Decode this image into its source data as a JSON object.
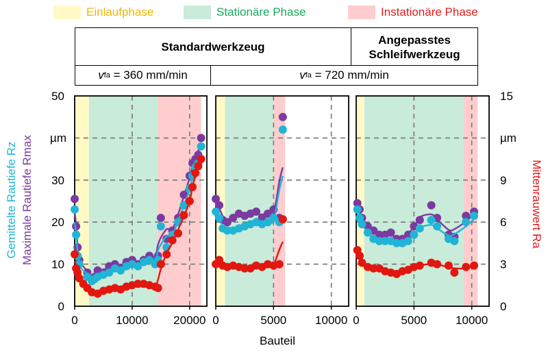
{
  "legend": [
    {
      "label": "Einlaufphase",
      "fill": "#fff9c6",
      "text_color": "#f2b800"
    },
    {
      "label": "Stationäre Phase",
      "fill": "#c9ebd9",
      "text_color": "#1aa85a"
    },
    {
      "label": "Instationäre Phase",
      "fill": "#ffcdcd",
      "text_color": "#e21b1b"
    }
  ],
  "header": {
    "standard_tool": "Standardwerkzeug",
    "adapted_tool_line1": "Angepasstes",
    "adapted_tool_line2": "Schleifwerkzeug"
  },
  "speeds": [
    {
      "symbol": "v",
      "subscript": "fa",
      "value": "= 360 mm/min"
    },
    {
      "symbol": "v",
      "subscript": "fa",
      "value": "= 720 mm/min"
    }
  ],
  "axes": {
    "y_left_label_line1": "Gemittelte Rautiefe Rz",
    "y_left_label_line2": "Maximale Rautiefe Rmax",
    "y_left_unit": "µm",
    "y_left_ticks": [
      "0",
      "10",
      "20",
      "30",
      "40",
      "50"
    ],
    "y_right_label": "Mittenrauwert Ra",
    "y_right_unit": "µm",
    "y_right_ticks": [
      "0",
      "3",
      "6",
      "9",
      "12",
      "15"
    ],
    "x_label": "Bauteil"
  },
  "colors": {
    "rz": "#20b4d6",
    "rmax": "#7a3aa0",
    "ra": "#e2170f",
    "grid": "#777777"
  },
  "chart_data": [
    {
      "type": "scatter",
      "title": "Standardwerkzeug, vfa = 360 mm/min",
      "xlim": [
        0,
        23000
      ],
      "ylim": [
        0,
        50
      ],
      "y2lim": [
        0,
        15
      ],
      "xticks": [
        0,
        10000,
        20000
      ],
      "xtick_labels": [
        "0",
        "10000",
        "20000"
      ],
      "phases": [
        {
          "phase": "Einlaufphase",
          "from": 0,
          "to": 2500
        },
        {
          "phase": "Stationäre Phase",
          "from": 2500,
          "to": 14500
        },
        {
          "phase": "Instationäre Phase",
          "from": 14500,
          "to": 22000
        }
      ],
      "series": [
        {
          "name": "Rmax",
          "axis": "left",
          "x": [
            0,
            250,
            500,
            800,
            2200,
            3000,
            3500,
            4000,
            5000,
            6000,
            7000,
            8000,
            9000,
            10000,
            11000,
            12000,
            13000,
            14000,
            14500,
            15000,
            16000,
            17000,
            18000,
            19000,
            20000,
            20500,
            21000,
            21500,
            22000
          ],
          "y": [
            25.5,
            19,
            14,
            11,
            8,
            6,
            7,
            8.5,
            8,
            9.5,
            10,
            9,
            10.5,
            11,
            10,
            11,
            12,
            11,
            12,
            21,
            16,
            18,
            21,
            26.5,
            31,
            34,
            35,
            36,
            40
          ]
        },
        {
          "name": "Rz",
          "axis": "left",
          "x": [
            0,
            250,
            500,
            800,
            2200,
            3000,
            3500,
            4000,
            5000,
            6000,
            7000,
            8000,
            9000,
            10000,
            11000,
            12000,
            13000,
            14000,
            14500,
            15000,
            16000,
            17000,
            18000,
            19000,
            20000,
            20500,
            21000,
            21500,
            22000
          ],
          "y": [
            23,
            17,
            12,
            10,
            7,
            6,
            6.5,
            7,
            7.5,
            8,
            9,
            8.5,
            9.5,
            10,
            9.5,
            10.5,
            11,
            10,
            11,
            19,
            14,
            17,
            20,
            24,
            28,
            31,
            33,
            34,
            38
          ]
        },
        {
          "name": "Ra",
          "axis": "right",
          "x": [
            0,
            250,
            500,
            800,
            1500,
            2200,
            3000,
            4000,
            5000,
            6000,
            7000,
            8000,
            9000,
            10000,
            11000,
            12000,
            13000,
            14000,
            14500,
            15000,
            16000,
            17000,
            18000,
            19000,
            20000,
            20500,
            21000,
            21500,
            22000
          ],
          "y": [
            3.7,
            2.7,
            2.4,
            2.0,
            1.6,
            1.3,
            1.0,
            0.9,
            1.1,
            1.2,
            1.3,
            1.2,
            1.4,
            1.5,
            1.6,
            1.6,
            1.5,
            1.4,
            1.3,
            3.0,
            3.7,
            4.7,
            5.2,
            6.5,
            7.5,
            8.5,
            9.5,
            10,
            10.5
          ]
        }
      ]
    },
    {
      "type": "scatter",
      "title": "Standardwerkzeug, vfa = 720 mm/min",
      "xlim": [
        0,
        11500
      ],
      "ylim": [
        0,
        50
      ],
      "y2lim": [
        0,
        15
      ],
      "xticks": [
        0,
        5000,
        10000
      ],
      "xtick_labels": [
        "0",
        "5000",
        "10000"
      ],
      "phases": [
        {
          "phase": "Einlaufphase",
          "from": 0,
          "to": 800
        },
        {
          "phase": "Stationäre Phase",
          "from": 800,
          "to": 5000
        },
        {
          "phase": "Instationäre Phase",
          "from": 5000,
          "to": 6000
        }
      ],
      "series": [
        {
          "name": "Rmax",
          "axis": "left",
          "x": [
            0,
            300,
            600,
            1000,
            1500,
            2000,
            2500,
            3000,
            3500,
            4000,
            4500,
            5000,
            5500,
            5800
          ],
          "y": [
            25.5,
            24,
            20.5,
            20,
            21,
            22,
            21.5,
            22,
            22.5,
            21,
            22,
            23,
            21,
            45
          ]
        },
        {
          "name": "Rz",
          "axis": "left",
          "x": [
            0,
            300,
            600,
            1000,
            1500,
            2000,
            2500,
            3000,
            3500,
            4000,
            4500,
            5000,
            5500,
            5800
          ],
          "y": [
            22.5,
            21,
            18.5,
            18,
            18,
            18.5,
            19,
            19.5,
            20,
            19.5,
            20,
            21,
            20,
            42
          ]
        },
        {
          "name": "Ra",
          "axis": "right",
          "x": [
            0,
            300,
            600,
            1000,
            1500,
            2000,
            2500,
            3000,
            3500,
            4000,
            4500,
            5000,
            5500,
            5800
          ],
          "y": [
            3.0,
            3.3,
            2.9,
            2.8,
            2.9,
            2.8,
            2.7,
            2.7,
            2.9,
            2.8,
            3.0,
            2.9,
            3.0,
            6.2
          ]
        }
      ]
    },
    {
      "type": "scatter",
      "title": "Angepasstes Schleifwerkzeug, vfa = 720 mm/min",
      "xlim": [
        0,
        11500
      ],
      "ylim": [
        0,
        50
      ],
      "y2lim": [
        0,
        15
      ],
      "xticks": [
        0,
        5000,
        10000
      ],
      "xtick_labels": [
        "0",
        "5000",
        "10000"
      ],
      "phases": [
        {
          "phase": "Einlaufphase",
          "from": 0,
          "to": 700
        },
        {
          "phase": "Stationäre Phase",
          "from": 700,
          "to": 9300
        },
        {
          "phase": "Instationäre Phase",
          "from": 9300,
          "to": 10500
        }
      ],
      "series": [
        {
          "name": "Rmax",
          "axis": "left",
          "x": [
            100,
            300,
            500,
            1000,
            1500,
            2000,
            2500,
            3000,
            3500,
            4000,
            4500,
            5000,
            5500,
            6500,
            7000,
            8000,
            8500,
            9500,
            10200
          ],
          "y": [
            24.5,
            23,
            21,
            19,
            18,
            17,
            17,
            17.5,
            16,
            16,
            17,
            19,
            20.5,
            24,
            21,
            17,
            16.5,
            21.5,
            22.5
          ]
        },
        {
          "name": "Rz",
          "axis": "left",
          "x": [
            100,
            300,
            500,
            1000,
            1500,
            2000,
            2500,
            3000,
            3500,
            4000,
            4500,
            5000,
            5500,
            6500,
            7000,
            8000,
            8500,
            9500,
            10200
          ],
          "y": [
            23,
            21,
            19.5,
            17.5,
            16,
            15.5,
            15.5,
            15.5,
            15,
            15,
            15.5,
            17,
            18.5,
            20.5,
            19,
            16,
            15.5,
            20,
            21.5
          ]
        },
        {
          "name": "Ra",
          "axis": "right",
          "x": [
            100,
            300,
            500,
            1000,
            1500,
            2000,
            2500,
            3000,
            3500,
            4000,
            4500,
            5000,
            5500,
            6500,
            7000,
            8000,
            8500,
            9500,
            10200
          ],
          "y": [
            4.0,
            3.6,
            3.1,
            2.8,
            2.7,
            2.7,
            2.5,
            2.4,
            2.3,
            2.5,
            2.6,
            2.8,
            2.9,
            3.1,
            3.0,
            2.9,
            2.4,
            2.8,
            2.9
          ]
        }
      ]
    }
  ]
}
